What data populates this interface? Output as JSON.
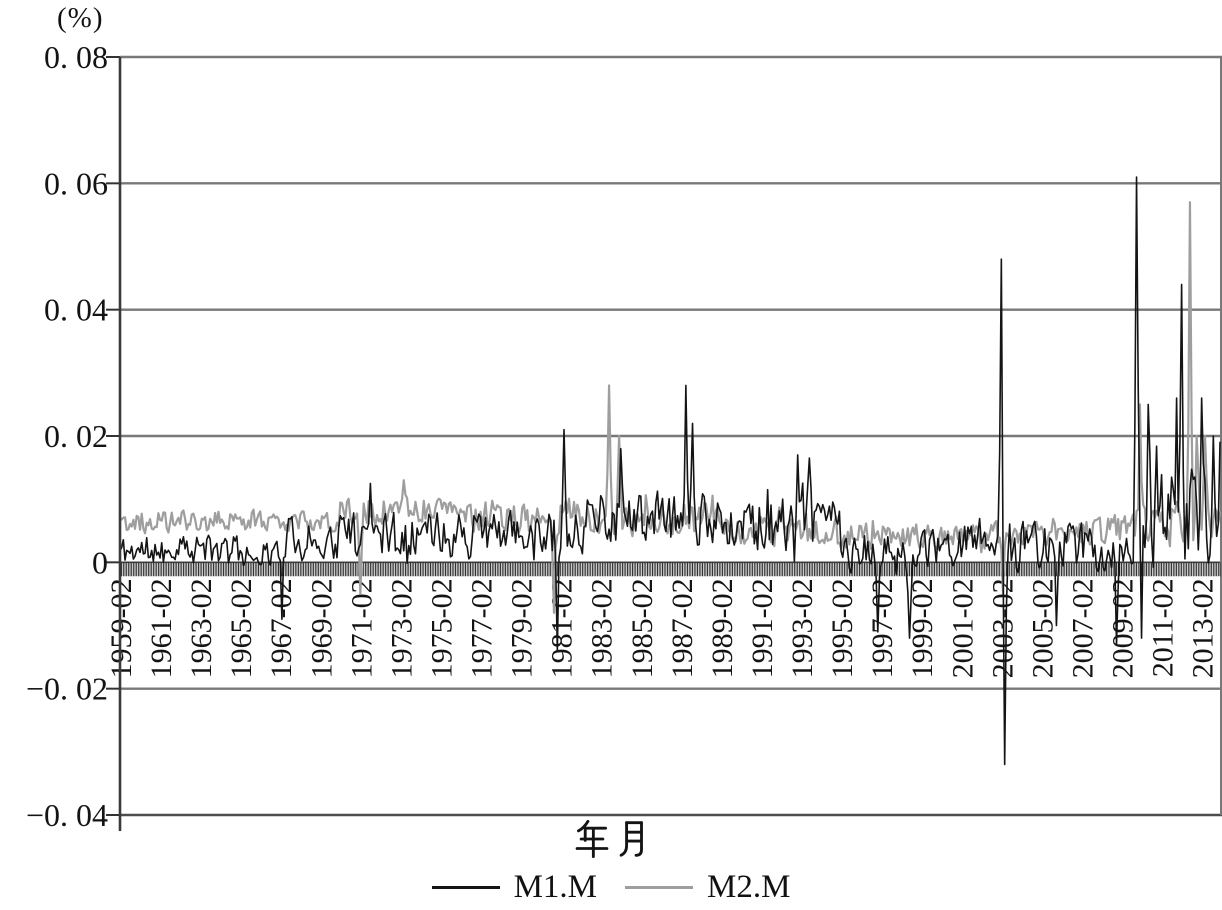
{
  "chart": {
    "unit_label": "(%)",
    "xlabel": "年月",
    "legend": {
      "m1_label": "M1.M",
      "m2_label": "M2.M"
    }
  },
  "chart_data": {
    "type": "line",
    "title": "",
    "ylabel": "(%)",
    "xlabel": "年月",
    "x_start": "1959-02",
    "x_end": "2014-01",
    "x_freq": "monthly",
    "n_points": 660,
    "ylim": [
      -0.04,
      0.08
    ],
    "yticks": [
      0.08,
      0.06,
      0.04,
      0.02,
      0,
      -0.02,
      -0.04
    ],
    "ytick_labels": [
      "0. 08",
      "0. 06",
      "0. 04",
      "0. 02",
      "0",
      "−0. 02",
      "−0. 04"
    ],
    "x_tick_interval_months": 24,
    "x_tick_labels": [
      "1959-02",
      "1961-02",
      "1963-02",
      "1965-02",
      "1967-02",
      "1969-02",
      "1971-02",
      "1973-02",
      "1975-02",
      "1977-02",
      "1979-02",
      "1981-02",
      "1983-02",
      "1985-02",
      "1987-02",
      "1989-02",
      "1991-02",
      "1993-02",
      "1995-02",
      "1997-02",
      "1999-02",
      "2001-02",
      "2003-02",
      "2005-02",
      "2007-02",
      "2009-02",
      "2011-02",
      "2013-02"
    ],
    "grid": "horizontal",
    "legend_position": "bottom",
    "axis_color": "#3a3a3a",
    "grid_color": "#787878",
    "series": [
      {
        "name": "M2.M",
        "color": "#9e9e9e",
        "line_width": 2.2,
        "seed": 47,
        "envelope": [
          {
            "start_month": 0,
            "end_month": 131,
            "mean": 0.0065,
            "amp": 0.0022
          },
          {
            "start_month": 132,
            "end_month": 203,
            "mean": 0.0085,
            "amp": 0.0028
          },
          {
            "start_month": 204,
            "end_month": 275,
            "mean": 0.0075,
            "amp": 0.0032
          },
          {
            "start_month": 276,
            "end_month": 359,
            "mean": 0.007,
            "amp": 0.0036
          },
          {
            "start_month": 360,
            "end_month": 431,
            "mean": 0.005,
            "amp": 0.003
          },
          {
            "start_month": 432,
            "end_month": 539,
            "mean": 0.0042,
            "amp": 0.0026
          },
          {
            "start_month": 540,
            "end_month": 607,
            "mean": 0.005,
            "amp": 0.003
          },
          {
            "start_month": 608,
            "end_month": 659,
            "mean": 0.006,
            "amp": 0.0048
          }
        ],
        "key_points": [
          {
            "month_index": 144,
            "date": "1971-02",
            "value": -0.005
          },
          {
            "month_index": 170,
            "date": "1973-04",
            "value": 0.013
          },
          {
            "month_index": 260,
            "date": "1980-10",
            "value": -0.008
          },
          {
            "month_index": 293,
            "date": "1983-07",
            "value": 0.028
          },
          {
            "month_index": 299,
            "date": "1984-01",
            "value": 0.02
          },
          {
            "month_index": 529,
            "date": "2003-03",
            "value": -0.005
          },
          {
            "month_index": 611,
            "date": "2010-01",
            "value": 0.025
          },
          {
            "month_index": 641,
            "date": "2012-07",
            "value": 0.057
          },
          {
            "month_index": 645,
            "date": "2012-11",
            "value": 0.02
          },
          {
            "month_index": 650,
            "date": "2013-04",
            "value": 0.02
          }
        ]
      },
      {
        "name": "M1.M",
        "color": "#141414",
        "line_width": 1.6,
        "seed": 11,
        "envelope": [
          {
            "start_month": 0,
            "end_month": 95,
            "mean": 0.0018,
            "amp": 0.0032
          },
          {
            "start_month": 96,
            "end_month": 131,
            "mean": 0.0035,
            "amp": 0.0045
          },
          {
            "start_month": 132,
            "end_month": 251,
            "mean": 0.0048,
            "amp": 0.0042
          },
          {
            "start_month": 252,
            "end_month": 287,
            "mean": 0.006,
            "amp": 0.0062
          },
          {
            "start_month": 288,
            "end_month": 371,
            "mean": 0.0068,
            "amp": 0.0052
          },
          {
            "start_month": 372,
            "end_month": 431,
            "mean": 0.006,
            "amp": 0.0056
          },
          {
            "start_month": 432,
            "end_month": 503,
            "mean": 0.0012,
            "amp": 0.0044
          },
          {
            "start_month": 504,
            "end_month": 531,
            "mean": 0.004,
            "amp": 0.004
          },
          {
            "start_month": 532,
            "end_month": 607,
            "mean": 0.0022,
            "amp": 0.005
          },
          {
            "start_month": 608,
            "end_month": 659,
            "mean": 0.0072,
            "amp": 0.0092
          }
        ],
        "key_points": [
          {
            "month_index": 97,
            "date": "1967-03",
            "value": -0.009
          },
          {
            "month_index": 150,
            "date": "1971-08",
            "value": 0.0125
          },
          {
            "month_index": 262,
            "date": "1980-12",
            "value": -0.014
          },
          {
            "month_index": 266,
            "date": "1981-04",
            "value": 0.021
          },
          {
            "month_index": 300,
            "date": "1984-02",
            "value": 0.018
          },
          {
            "month_index": 339,
            "date": "1987-05",
            "value": 0.028
          },
          {
            "month_index": 343,
            "date": "1987-09",
            "value": 0.022
          },
          {
            "month_index": 406,
            "date": "1992-12",
            "value": 0.017
          },
          {
            "month_index": 413,
            "date": "1993-07",
            "value": 0.0165
          },
          {
            "month_index": 454,
            "date": "1996-12",
            "value": -0.011
          },
          {
            "month_index": 473,
            "date": "1998-07",
            "value": -0.012
          },
          {
            "month_index": 528,
            "date": "2003-02",
            "value": 0.048
          },
          {
            "month_index": 530,
            "date": "2003-04",
            "value": -0.032
          },
          {
            "month_index": 561,
            "date": "2005-11",
            "value": -0.01
          },
          {
            "month_index": 597,
            "date": "2008-11",
            "value": -0.013
          },
          {
            "month_index": 609,
            "date": "2009-11",
            "value": 0.061
          },
          {
            "month_index": 612,
            "date": "2010-02",
            "value": -0.012
          },
          {
            "month_index": 616,
            "date": "2010-06",
            "value": 0.025
          },
          {
            "month_index": 633,
            "date": "2011-11",
            "value": 0.026
          },
          {
            "month_index": 636,
            "date": "2012-02",
            "value": 0.044
          },
          {
            "month_index": 648,
            "date": "2013-02",
            "value": 0.026
          },
          {
            "month_index": 655,
            "date": "2013-09",
            "value": 0.02
          },
          {
            "month_index": 659,
            "date": "2014-01",
            "value": 0.019
          }
        ]
      }
    ]
  }
}
